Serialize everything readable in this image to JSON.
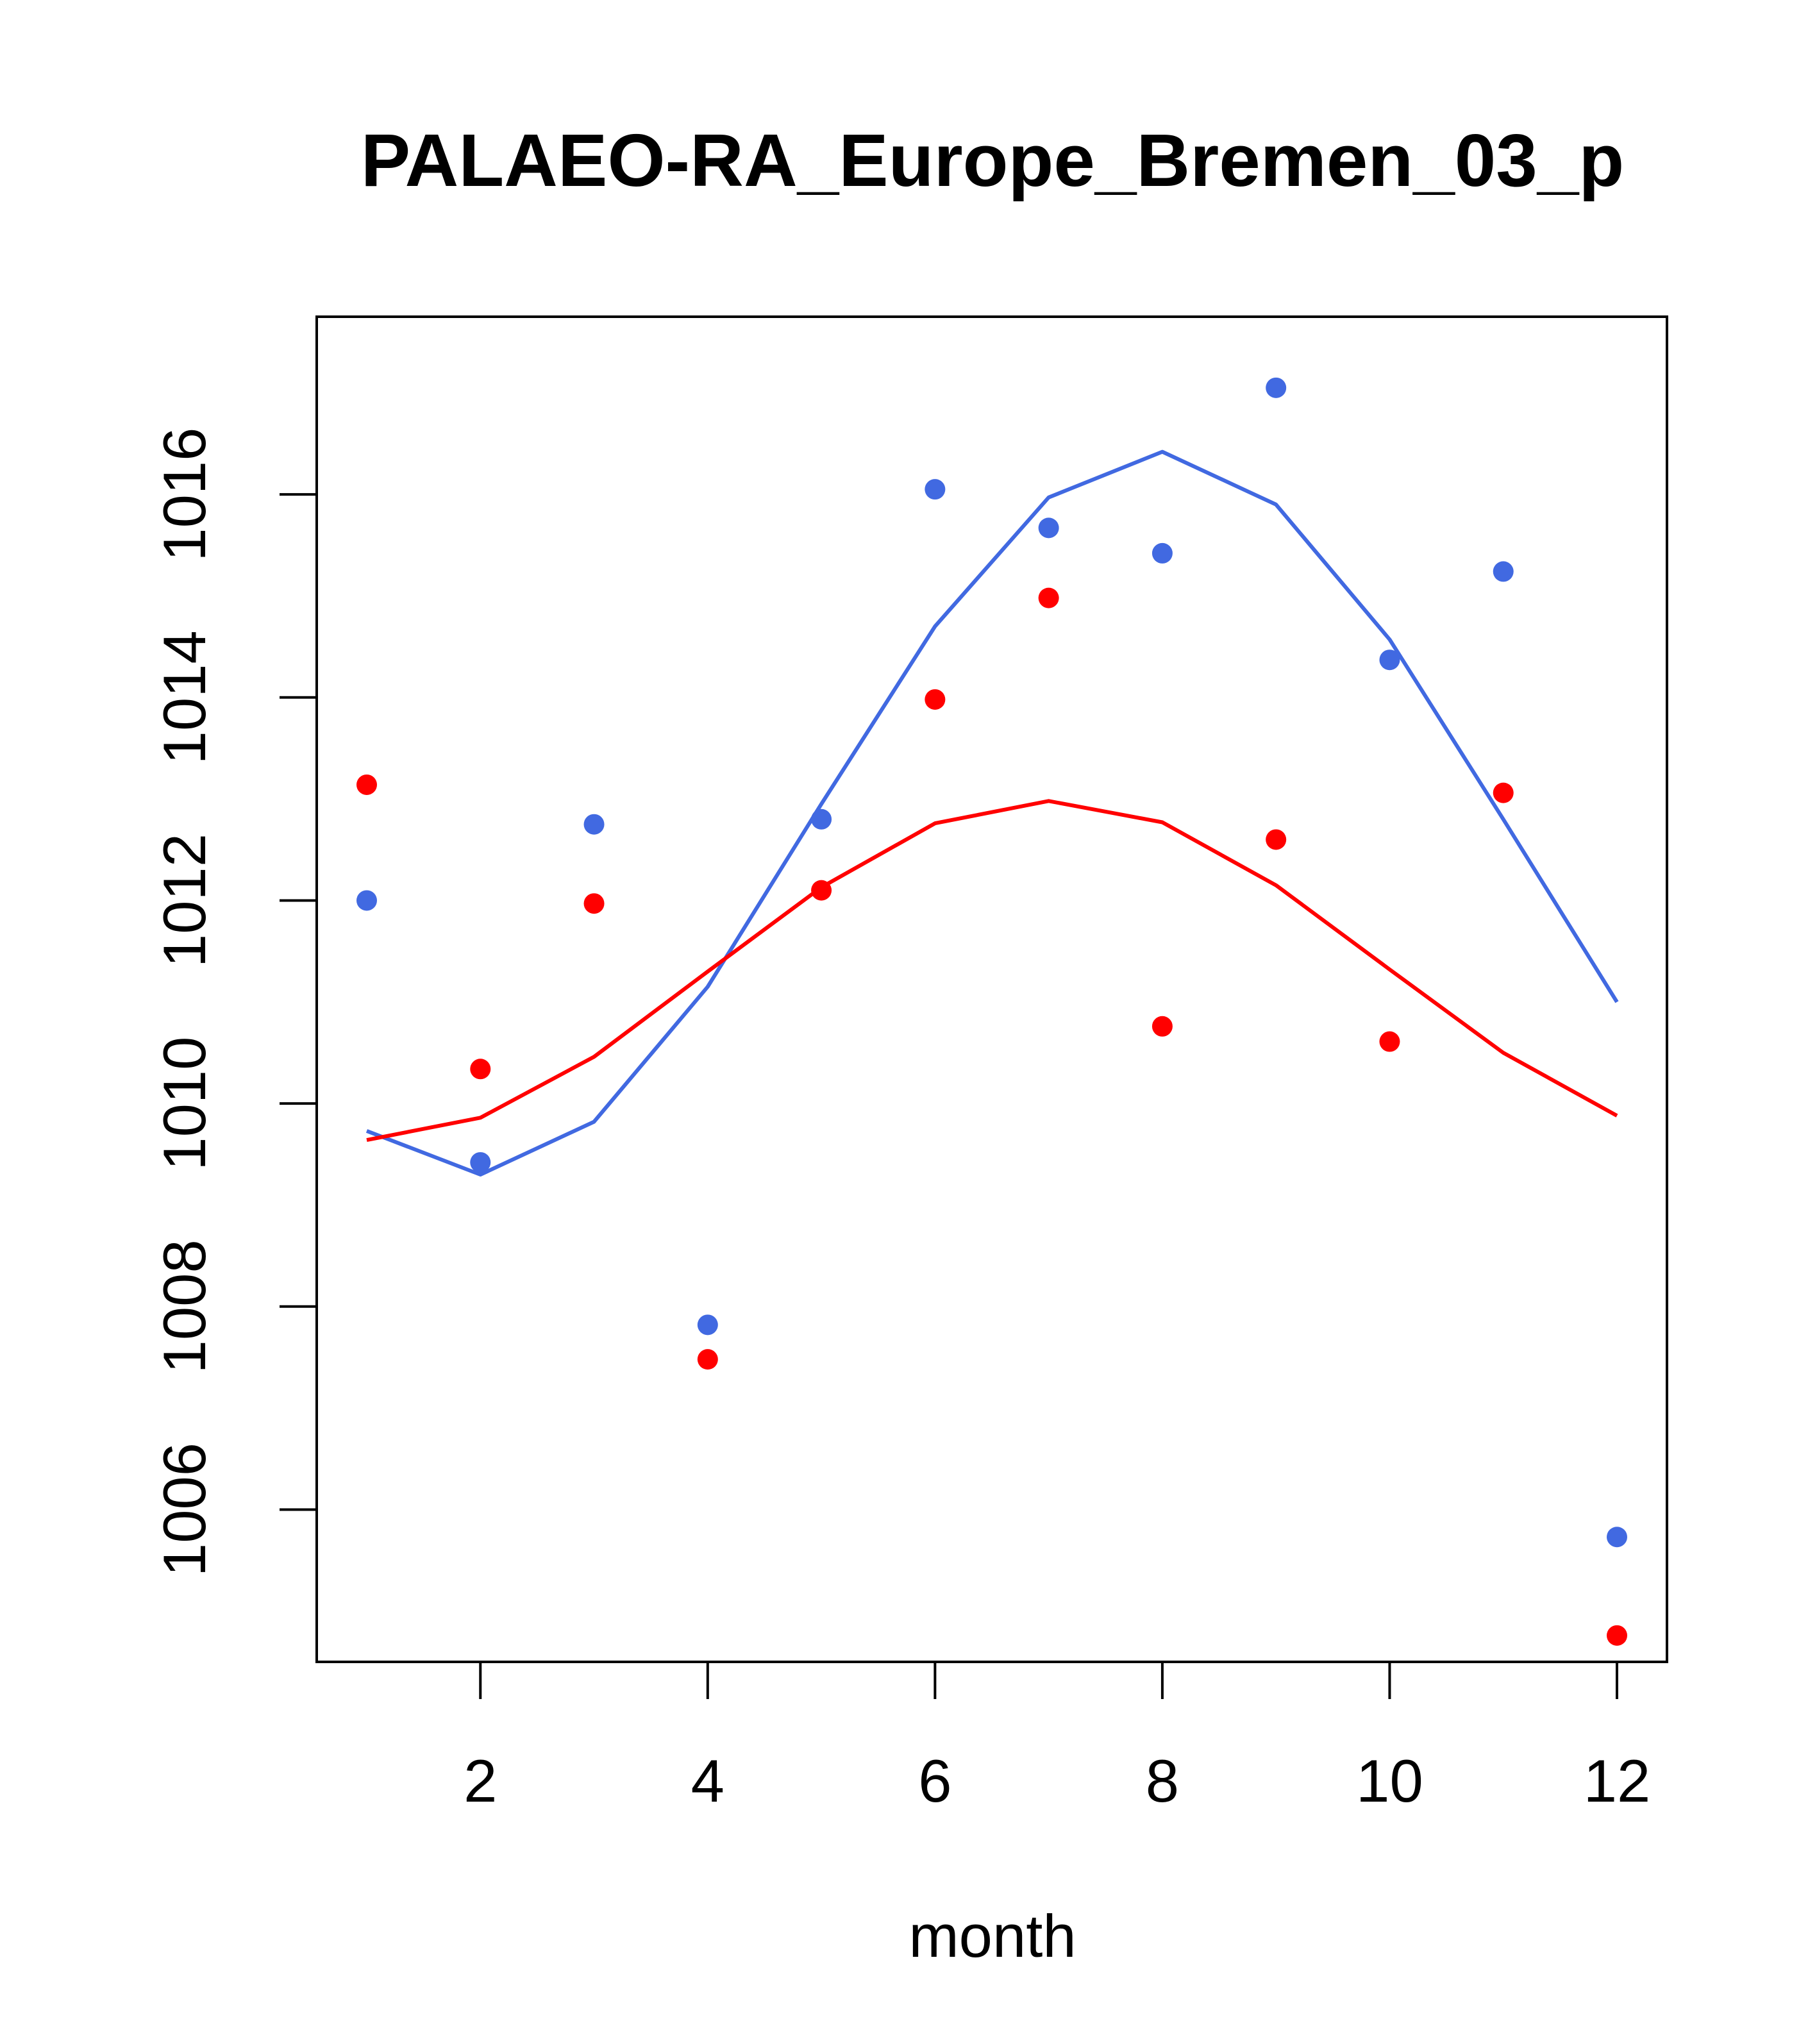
{
  "chart_data": {
    "type": "scatter",
    "title": "PALAEO-RA_Europe_Bremen_03_p",
    "xlabel": "month",
    "ylabel": "",
    "xlim": [
      0.56,
      12.44
    ],
    "ylim": [
      1004.5,
      1017.75
    ],
    "x_ticks": [
      2,
      4,
      6,
      8,
      10,
      12
    ],
    "x_tick_labels": [
      "2",
      "4",
      "6",
      "8",
      "10",
      "12"
    ],
    "y_ticks": [
      1006,
      1008,
      1010,
      1012,
      1014,
      1016
    ],
    "y_tick_labels": [
      "1006",
      "1008",
      "1010",
      "1012",
      "1014",
      "1016"
    ],
    "grid": false,
    "legend": "none",
    "x": [
      1,
      2,
      3,
      4,
      5,
      6,
      7,
      8,
      9,
      10,
      11,
      12
    ],
    "series": [
      {
        "name": "blue points",
        "kind": "points",
        "color": "#4169E1",
        "values": [
          1012.0,
          1009.42,
          1012.75,
          1007.82,
          1012.8,
          1016.05,
          1015.67,
          1015.42,
          1017.05,
          1014.37,
          1015.24,
          1005.73
        ]
      },
      {
        "name": "red points",
        "kind": "points",
        "color": "#FF0000",
        "values": [
          1013.14,
          1010.34,
          1011.97,
          1007.48,
          1012.1,
          1013.98,
          1014.98,
          1010.76,
          1012.6,
          1010.61,
          1013.06,
          1004.76
        ]
      },
      {
        "name": "blue line",
        "kind": "line",
        "color": "#4169E1",
        "values": [
          1009.73,
          1009.3,
          1009.82,
          1011.15,
          1012.95,
          1014.7,
          1015.97,
          1016.42,
          1015.9,
          1014.57,
          1012.8,
          1011.0
        ]
      },
      {
        "name": "red line",
        "kind": "line",
        "color": "#FF0000",
        "values": [
          1009.64,
          1009.86,
          1010.46,
          1011.3,
          1012.13,
          1012.76,
          1012.98,
          1012.77,
          1012.15,
          1011.32,
          1010.5,
          1009.88
        ]
      }
    ]
  }
}
